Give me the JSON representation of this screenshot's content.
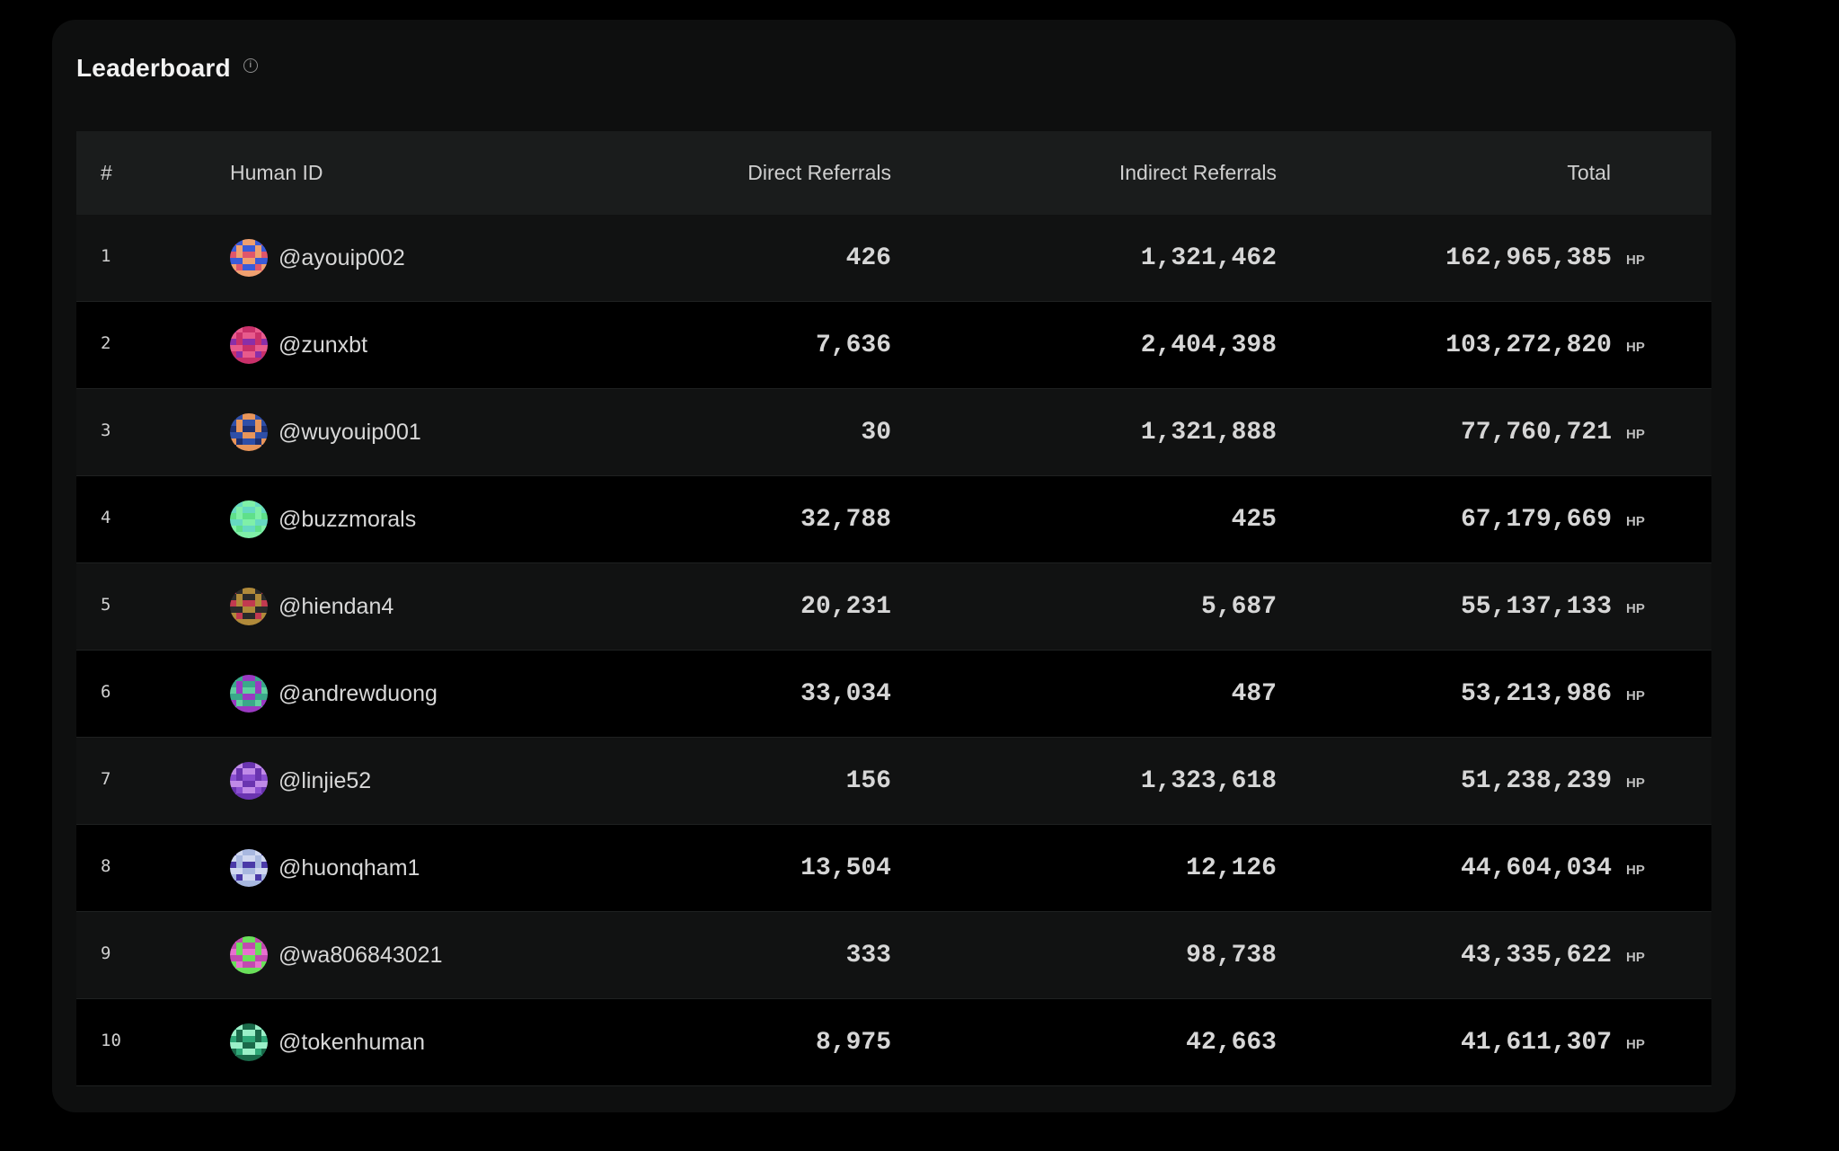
{
  "header": {
    "title": "Leaderboard",
    "info_icon": "info-icon"
  },
  "columns": {
    "rank": "#",
    "human_id": "Human ID",
    "direct": "Direct Referrals",
    "indirect": "Indirect Referrals",
    "total": "Total"
  },
  "unit": "HP",
  "rows": [
    {
      "rank": "1",
      "handle": "@ayouip002",
      "direct": "426",
      "indirect": "1,321,462",
      "total": "162,965,385",
      "avatar": {
        "bg": "#e0566b",
        "fg": "#3b5bd9",
        "accent": "#f0a070"
      }
    },
    {
      "rank": "2",
      "handle": "@zunxbt",
      "direct": "7,636",
      "indirect": "2,404,398",
      "total": "103,272,820",
      "avatar": {
        "bg": "#c9306a",
        "fg": "#8a2fa8",
        "accent": "#e85a8c"
      }
    },
    {
      "rank": "3",
      "handle": "@wuyouip001",
      "direct": "30",
      "indirect": "1,321,888",
      "total": "77,760,721",
      "avatar": {
        "bg": "#2f4fa8",
        "fg": "#e8955a",
        "accent": "#1c2f70"
      }
    },
    {
      "rank": "4",
      "handle": "@buzzmorals",
      "direct": "32,788",
      "indirect": "425",
      "total": "67,179,669",
      "avatar": {
        "bg": "#5fe08a",
        "fg": "#66d9c2",
        "accent": "#7ff0a8"
      }
    },
    {
      "rank": "5",
      "handle": "@hiendan4",
      "direct": "20,231",
      "indirect": "5,687",
      "total": "55,137,133",
      "avatar": {
        "bg": "#b08a3a",
        "fg": "#c23a50",
        "accent": "#2a2a2a"
      }
    },
    {
      "rank": "6",
      "handle": "@andrewduong",
      "direct": "33,034",
      "indirect": "487",
      "total": "53,213,986",
      "avatar": {
        "bg": "#3aa88a",
        "fg": "#9a3ac2",
        "accent": "#5fd0a0"
      }
    },
    {
      "rank": "7",
      "handle": "@linjie52",
      "direct": "156",
      "indirect": "1,323,618",
      "total": "51,238,239",
      "avatar": {
        "bg": "#8a4fd0",
        "fg": "#c08ae8",
        "accent": "#6a34b0"
      }
    },
    {
      "rank": "8",
      "handle": "@huonqham1",
      "direct": "13,504",
      "indirect": "12,126",
      "total": "44,604,034",
      "avatar": {
        "bg": "#a8b8e0",
        "fg": "#4a3aa8",
        "accent": "#d0d8f0"
      }
    },
    {
      "rank": "9",
      "handle": "@wa806843021",
      "direct": "333",
      "indirect": "98,738",
      "total": "43,335,622",
      "avatar": {
        "bg": "#c24ab0",
        "fg": "#6ae05a",
        "accent": "#e870d0"
      }
    },
    {
      "rank": "10",
      "handle": "@tokenhuman",
      "direct": "8,975",
      "indirect": "42,663",
      "total": "41,611,307",
      "avatar": {
        "bg": "#2fa878",
        "fg": "#9af0c8",
        "accent": "#1a6a4a"
      }
    }
  ],
  "colors": {
    "page_bg": "#000000",
    "card_bg": "#0e0f0f",
    "header_bg": "#1a1c1c",
    "row_odd": "#111212",
    "row_even": "#000000"
  }
}
